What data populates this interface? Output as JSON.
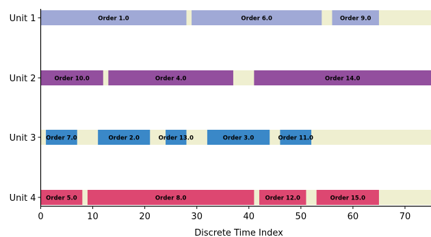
{
  "chart_data": {
    "type": "gantt",
    "xlabel": "Discrete Time Index",
    "xlim": [
      0,
      75
    ],
    "xticks": [
      0,
      10,
      20,
      30,
      40,
      50,
      60,
      70
    ],
    "units": [
      {
        "name": "Unit 1",
        "color": "#a0a9d6"
      },
      {
        "name": "Unit 2",
        "color": "#934f9e"
      },
      {
        "name": "Unit 3",
        "color": "#3a88c8"
      },
      {
        "name": "Unit 4",
        "color": "#dd4771"
      }
    ],
    "idle_color": "#efefd0",
    "tasks": [
      {
        "unit": 0,
        "label": "Order 1.0",
        "start": 0,
        "end": 28
      },
      {
        "unit": 0,
        "label": "Order 6.0",
        "start": 29,
        "end": 54
      },
      {
        "unit": 0,
        "label": "Order 9.0",
        "start": 56,
        "end": 65
      },
      {
        "unit": 1,
        "label": "Order 10.0",
        "start": 0,
        "end": 12
      },
      {
        "unit": 1,
        "label": "Order 4.0",
        "start": 13,
        "end": 37
      },
      {
        "unit": 1,
        "label": "Order 14.0",
        "start": 41,
        "end": 75
      },
      {
        "unit": 2,
        "label": "Order 7.0",
        "start": 1,
        "end": 7
      },
      {
        "unit": 2,
        "label": "Order 2.0",
        "start": 11,
        "end": 21
      },
      {
        "unit": 2,
        "label": "Order 13.0",
        "start": 24,
        "end": 28
      },
      {
        "unit": 2,
        "label": "Order 3.0",
        "start": 32,
        "end": 44
      },
      {
        "unit": 2,
        "label": "Order 11.0",
        "start": 46,
        "end": 52
      },
      {
        "unit": 3,
        "label": "Order 5.0",
        "start": 0,
        "end": 8
      },
      {
        "unit": 3,
        "label": "Order 8.0",
        "start": 9,
        "end": 41
      },
      {
        "unit": 3,
        "label": "Order 12.0",
        "start": 42,
        "end": 51
      },
      {
        "unit": 3,
        "label": "Order 15.0",
        "start": 53,
        "end": 65
      }
    ]
  }
}
